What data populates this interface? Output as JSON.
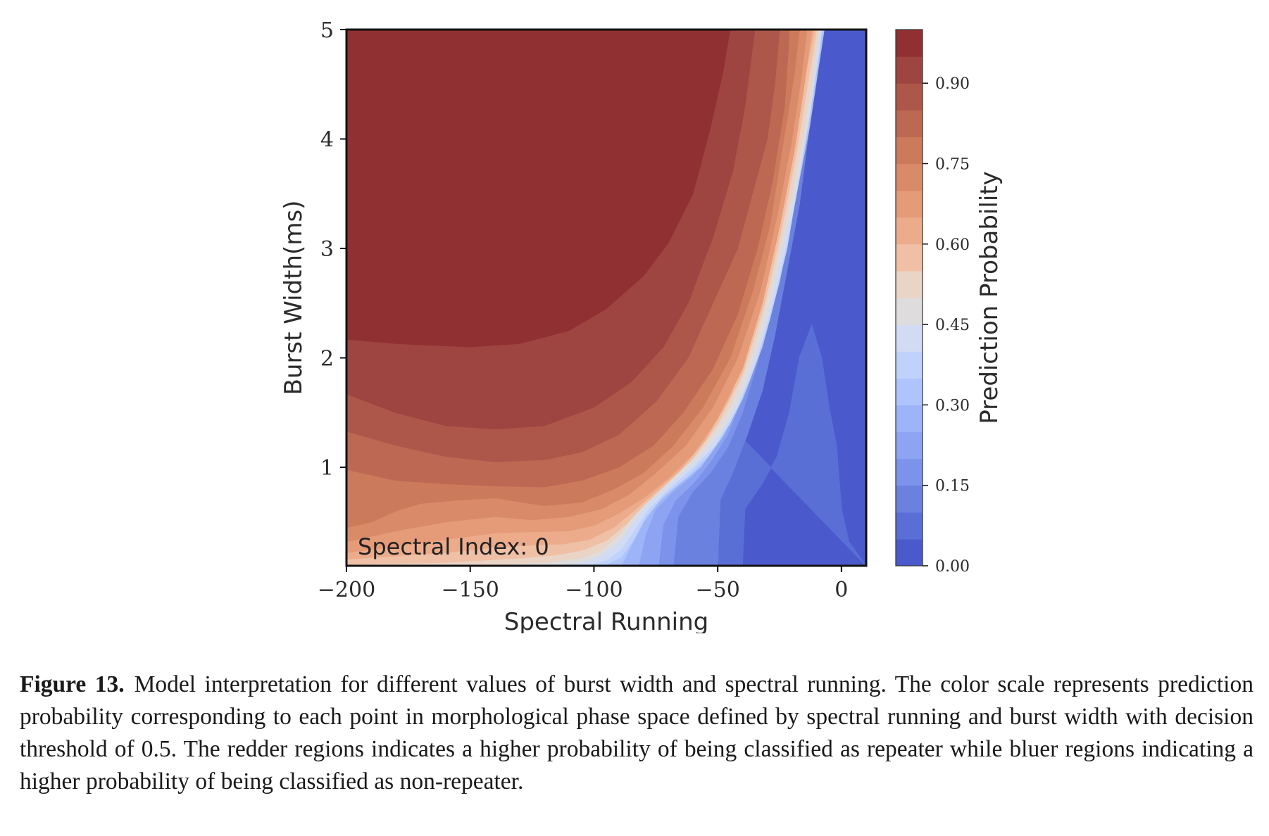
{
  "chart_data": {
    "type": "contour",
    "title": "",
    "xlabel": "Spectral Running",
    "ylabel": "Burst Width(ms)",
    "xlim": [
      -200,
      10
    ],
    "ylim": [
      0.1,
      5
    ],
    "xticks": [
      "−200",
      "−150",
      "−100",
      "−50",
      "0"
    ],
    "xtick_values": [
      -200,
      -150,
      -100,
      -50,
      0
    ],
    "yticks": [
      "1",
      "2",
      "3",
      "4",
      "5"
    ],
    "ytick_values": [
      1,
      2,
      3,
      4,
      5
    ],
    "annotation": "Spectral Index: 0",
    "colorbar": {
      "label": "Prediction Probability",
      "range": [
        0,
        1
      ],
      "levels": 20,
      "ticks": [
        "0.00",
        "0.15",
        "0.30",
        "0.45",
        "0.60",
        "0.75",
        "0.90"
      ],
      "tick_values": [
        0.0,
        0.15,
        0.3,
        0.45,
        0.6,
        0.75,
        0.9
      ],
      "colormap": "coolwarm",
      "level_colors": [
        "#4a5acc",
        "#5a6fd6",
        "#6a81e0",
        "#7b93ea",
        "#8ca4f2",
        "#9db4f8",
        "#afc4fc",
        "#c0d2fc",
        "#d1dbf4",
        "#dedcdc",
        "#ead4c6",
        "#efc0a6",
        "#ecac8c",
        "#e59a78",
        "#d98a68",
        "#cc7a5c",
        "#bc6853",
        "#ad574a",
        "#9e4541",
        "#913033"
      ]
    },
    "decision_threshold": 0.5,
    "contours": [
      {
        "level": 0.95,
        "points": [
          [
            -200,
            2.17
          ],
          [
            -180,
            2.13
          ],
          [
            -150,
            2.1
          ],
          [
            -130,
            2.13
          ],
          [
            -110,
            2.25
          ],
          [
            -95,
            2.45
          ],
          [
            -80,
            2.75
          ],
          [
            -70,
            3.05
          ],
          [
            -60,
            3.5
          ],
          [
            -53,
            4.1
          ],
          [
            -48,
            4.6
          ],
          [
            -45,
            5.0
          ]
        ]
      },
      {
        "level": 0.9,
        "points": [
          [
            -200,
            1.67
          ],
          [
            -180,
            1.5
          ],
          [
            -160,
            1.38
          ],
          [
            -140,
            1.35
          ],
          [
            -120,
            1.38
          ],
          [
            -100,
            1.55
          ],
          [
            -85,
            1.78
          ],
          [
            -72,
            2.1
          ],
          [
            -62,
            2.5
          ],
          [
            -52,
            3.1
          ],
          [
            -44,
            3.7
          ],
          [
            -39,
            4.3
          ],
          [
            -35,
            5.0
          ]
        ]
      },
      {
        "level": 0.85,
        "points": [
          [
            -200,
            1.33
          ],
          [
            -180,
            1.2
          ],
          [
            -160,
            1.1
          ],
          [
            -140,
            1.05
          ],
          [
            -120,
            1.07
          ],
          [
            -105,
            1.14
          ],
          [
            -90,
            1.3
          ],
          [
            -75,
            1.6
          ],
          [
            -62,
            2.0
          ],
          [
            -52,
            2.5
          ],
          [
            -42,
            3.0
          ],
          [
            -36,
            3.5
          ],
          [
            -30,
            4.0
          ],
          [
            -27,
            4.5
          ],
          [
            -25,
            5.0
          ]
        ]
      },
      {
        "level": 0.8,
        "points": [
          [
            -200,
            0.98
          ],
          [
            -180,
            0.88
          ],
          [
            -160,
            0.85
          ],
          [
            -140,
            0.83
          ],
          [
            -120,
            0.82
          ],
          [
            -105,
            0.88
          ],
          [
            -90,
            1.0
          ],
          [
            -76,
            1.2
          ],
          [
            -64,
            1.5
          ],
          [
            -52,
            1.9
          ],
          [
            -42,
            2.4
          ],
          [
            -34,
            3.0
          ],
          [
            -28,
            3.6
          ],
          [
            -23,
            4.3
          ],
          [
            -21,
            5.0
          ]
        ]
      },
      {
        "level": 0.75,
        "points": [
          [
            -200,
            0.45
          ],
          [
            -190,
            0.5
          ],
          [
            -180,
            0.6
          ],
          [
            -170,
            0.67
          ],
          [
            -155,
            0.7
          ],
          [
            -140,
            0.72
          ],
          [
            -120,
            0.65
          ],
          [
            -105,
            0.68
          ],
          [
            -92,
            0.8
          ],
          [
            -80,
            0.95
          ],
          [
            -68,
            1.2
          ],
          [
            -56,
            1.55
          ],
          [
            -45,
            2.0
          ],
          [
            -36,
            2.6
          ],
          [
            -29,
            3.2
          ],
          [
            -24,
            3.9
          ],
          [
            -19,
            4.6
          ],
          [
            -17,
            5.0
          ]
        ]
      },
      {
        "level": 0.7,
        "points": [
          [
            -200,
            0.32
          ],
          [
            -180,
            0.42
          ],
          [
            -160,
            0.5
          ],
          [
            -140,
            0.55
          ],
          [
            -125,
            0.52
          ],
          [
            -110,
            0.55
          ],
          [
            -97,
            0.62
          ],
          [
            -86,
            0.75
          ],
          [
            -75,
            0.95
          ],
          [
            -63,
            1.2
          ],
          [
            -52,
            1.55
          ],
          [
            -42,
            2.0
          ],
          [
            -33,
            2.6
          ],
          [
            -26,
            3.3
          ],
          [
            -20,
            4.0
          ],
          [
            -16,
            4.6
          ],
          [
            -14,
            5.0
          ]
        ]
      },
      {
        "level": 0.65,
        "points": [
          [
            -200,
            0.22
          ],
          [
            -180,
            0.28
          ],
          [
            -160,
            0.34
          ],
          [
            -140,
            0.4
          ],
          [
            -125,
            0.41
          ],
          [
            -110,
            0.42
          ],
          [
            -100,
            0.47
          ],
          [
            -90,
            0.58
          ],
          [
            -80,
            0.72
          ],
          [
            -70,
            0.9
          ],
          [
            -60,
            1.12
          ],
          [
            -50,
            1.45
          ],
          [
            -40,
            1.9
          ],
          [
            -32,
            2.5
          ],
          [
            -25,
            3.2
          ],
          [
            -19,
            3.9
          ],
          [
            -15,
            4.5
          ],
          [
            -12,
            5.0
          ]
        ]
      },
      {
        "level": 0.6,
        "points": [
          [
            -200,
            0.16
          ],
          [
            -180,
            0.19
          ],
          [
            -160,
            0.22
          ],
          [
            -140,
            0.27
          ],
          [
            -125,
            0.29
          ],
          [
            -112,
            0.3
          ],
          [
            -102,
            0.34
          ],
          [
            -92,
            0.45
          ],
          [
            -84,
            0.6
          ],
          [
            -75,
            0.78
          ],
          [
            -65,
            0.98
          ],
          [
            -55,
            1.25
          ],
          [
            -45,
            1.65
          ],
          [
            -36,
            2.2
          ],
          [
            -28,
            2.9
          ],
          [
            -22,
            3.6
          ],
          [
            -17,
            4.3
          ],
          [
            -11,
            5.0
          ]
        ]
      },
      {
        "level": 0.55,
        "points": [
          [
            -200,
            0.11
          ],
          [
            -160,
            0.13
          ],
          [
            -130,
            0.17
          ],
          [
            -115,
            0.2
          ],
          [
            -105,
            0.24
          ],
          [
            -95,
            0.33
          ],
          [
            -87,
            0.48
          ],
          [
            -80,
            0.65
          ],
          [
            -70,
            0.86
          ],
          [
            -60,
            1.08
          ],
          [
            -50,
            1.4
          ],
          [
            -40,
            1.85
          ],
          [
            -31,
            2.5
          ],
          [
            -24,
            3.2
          ],
          [
            -18,
            3.9
          ],
          [
            -13,
            4.6
          ],
          [
            -10,
            5.0
          ]
        ]
      },
      {
        "level": 0.5,
        "points": [
          [
            -150,
            0.1
          ],
          [
            -120,
            0.13
          ],
          [
            -105,
            0.17
          ],
          [
            -97,
            0.24
          ],
          [
            -90,
            0.38
          ],
          [
            -84,
            0.55
          ],
          [
            -75,
            0.78
          ],
          [
            -65,
            0.97
          ],
          [
            -55,
            1.2
          ],
          [
            -45,
            1.55
          ],
          [
            -36,
            2.05
          ],
          [
            -28,
            2.7
          ],
          [
            -21,
            3.4
          ],
          [
            -15,
            4.1
          ],
          [
            -11,
            4.7
          ],
          [
            -9,
            5.0
          ]
        ]
      },
      {
        "level": 0.45,
        "points": [
          [
            -118,
            0.1
          ],
          [
            -105,
            0.13
          ],
          [
            -97,
            0.2
          ],
          [
            -90,
            0.32
          ],
          [
            -85,
            0.48
          ],
          [
            -78,
            0.68
          ],
          [
            -68,
            0.88
          ],
          [
            -58,
            1.08
          ],
          [
            -48,
            1.35
          ],
          [
            -39,
            1.75
          ],
          [
            -31,
            2.3
          ],
          [
            -24,
            3.0
          ],
          [
            -17,
            3.7
          ],
          [
            -12,
            4.4
          ],
          [
            -9,
            5.0
          ]
        ]
      },
      {
        "level": 0.4,
        "points": [
          [
            -104,
            0.1
          ],
          [
            -95,
            0.15
          ],
          [
            -89,
            0.25
          ],
          [
            -84,
            0.42
          ],
          [
            -78,
            0.62
          ],
          [
            -70,
            0.8
          ],
          [
            -61,
            0.98
          ],
          [
            -51,
            1.2
          ],
          [
            -42,
            1.55
          ],
          [
            -34,
            2.0
          ],
          [
            -26,
            2.65
          ],
          [
            -19,
            3.4
          ],
          [
            -13,
            4.2
          ],
          [
            -9,
            4.8
          ],
          [
            -8,
            5.0
          ]
        ]
      },
      {
        "level": 0.35,
        "points": [
          [
            -96,
            0.1
          ],
          [
            -89,
            0.18
          ],
          [
            -84,
            0.34
          ],
          [
            -79,
            0.55
          ],
          [
            -72,
            0.74
          ],
          [
            -63,
            0.9
          ],
          [
            -54,
            1.1
          ],
          [
            -45,
            1.4
          ],
          [
            -37,
            1.8
          ],
          [
            -29,
            2.35
          ],
          [
            -22,
            3.0
          ],
          [
            -16,
            3.8
          ],
          [
            -11,
            4.5
          ],
          [
            -8,
            5.0
          ]
        ]
      },
      {
        "level": 0.3,
        "points": [
          [
            -89,
            0.1
          ],
          [
            -85,
            0.28
          ],
          [
            -80,
            0.5
          ],
          [
            -74,
            0.68
          ],
          [
            -66,
            0.84
          ],
          [
            -57,
            1.0
          ],
          [
            -48,
            1.28
          ],
          [
            -40,
            1.62
          ],
          [
            -32,
            2.1
          ],
          [
            -25,
            2.7
          ],
          [
            -19,
            3.4
          ],
          [
            -13,
            4.1
          ],
          [
            -9,
            4.7
          ],
          [
            -7,
            5.0
          ]
        ]
      },
      {
        "level": 0.25,
        "points": [
          [
            -82,
            0.1
          ],
          [
            -79,
            0.4
          ],
          [
            -75,
            0.62
          ],
          [
            -68,
            0.78
          ],
          [
            -60,
            0.93
          ],
          [
            -52,
            1.15
          ],
          [
            -44,
            1.45
          ],
          [
            -36,
            1.9
          ],
          [
            -28,
            2.45
          ],
          [
            -22,
            3.1
          ],
          [
            -16,
            3.8
          ],
          [
            -11,
            4.5
          ],
          [
            -8,
            5.0
          ]
        ]
      },
      {
        "level": 0.2,
        "points": [
          [
            -74,
            0.1
          ],
          [
            -72,
            0.48
          ],
          [
            -67,
            0.7
          ],
          [
            -60,
            0.85
          ],
          [
            -53,
            1.05
          ],
          [
            -46,
            1.3
          ],
          [
            -39,
            1.7
          ],
          [
            -32,
            2.2
          ],
          [
            -25,
            2.85
          ],
          [
            -19,
            3.5
          ],
          [
            -13,
            4.3
          ],
          [
            -9,
            5.0
          ]
        ]
      },
      {
        "level": 0.15,
        "points": [
          [
            -68,
            0.1
          ],
          [
            -66,
            0.55
          ],
          [
            -60,
            0.78
          ],
          [
            -53,
            0.95
          ],
          [
            -46,
            1.18
          ],
          [
            -40,
            1.5
          ],
          [
            -34,
            1.95
          ],
          [
            -28,
            2.55
          ],
          [
            -22,
            3.2
          ],
          [
            -16,
            4.0
          ],
          [
            -12,
            4.6
          ],
          [
            -10,
            5.0
          ]
        ]
      },
      {
        "level": 0.1,
        "points": [
          [
            -50,
            0.1
          ],
          [
            -49,
            0.7
          ],
          [
            -44,
            0.95
          ],
          [
            -38,
            1.3
          ],
          [
            -32,
            1.7
          ],
          [
            -27,
            2.2
          ],
          [
            -22,
            2.8
          ],
          [
            -17,
            3.4
          ],
          [
            -13,
            4.1
          ],
          [
            -10,
            4.7
          ],
          [
            -9,
            5.0
          ]
        ]
      },
      {
        "level": 0.05,
        "points": [
          [
            -40,
            0.1
          ],
          [
            -39,
            0.62
          ],
          [
            -32,
            0.85
          ],
          [
            -26,
            1.1
          ],
          [
            -21,
            1.5
          ],
          [
            -17,
            2.0
          ],
          [
            -12,
            2.3
          ],
          [
            -8,
            2.0
          ],
          [
            -5,
            1.55
          ],
          [
            -2,
            1.2
          ],
          [
            0,
            0.62
          ],
          [
            3,
            0.32
          ],
          [
            10,
            0.1
          ]
        ]
      }
    ]
  },
  "figure_caption": {
    "label": "Figure 13.",
    "text": "Model interpretation for different values of burst width and spectral running. The color scale represents prediction probability corresponding to each point in morphological phase space defined by spectral running and burst width with decision threshold of 0.5. The redder regions indicates a higher probability of being classified as repeater while bluer regions indicating a higher probability of being classified as non-repeater."
  }
}
